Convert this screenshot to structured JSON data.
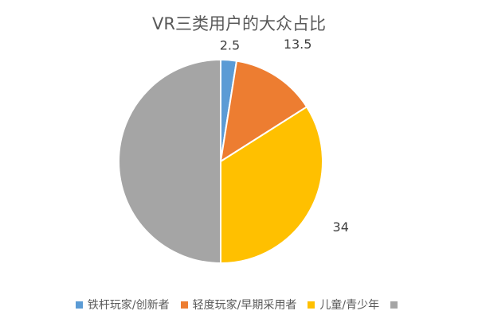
{
  "chart_data": {
    "type": "pie",
    "title": "VR三类用户的大众占比",
    "labels": [
      "铁杆玩家/创新者",
      "轻度玩家/早期采用者",
      "儿童/青少年",
      ""
    ],
    "values": [
      2.5,
      13.5,
      34,
      50
    ],
    "data_labels": [
      "2.5",
      "13.5",
      "34",
      ""
    ],
    "colors": [
      "#5B9BD5",
      "#ED7D31",
      "#FFC000",
      "#A5A5A5"
    ],
    "legend_position": "bottom"
  }
}
